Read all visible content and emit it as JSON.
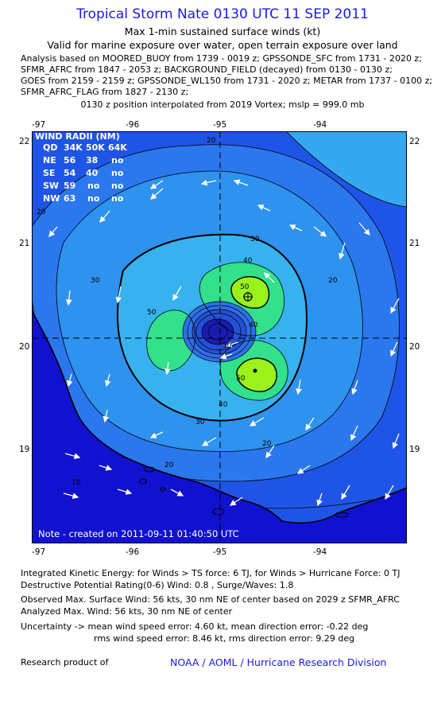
{
  "title": "Tropical Storm Nate 0130 UTC 11 SEP 2011",
  "subtitle1": "Max 1-min sustained surface winds (kt)",
  "subtitle2": "Valid for marine exposure over water, open terrain exposure over land",
  "analysis_lines": [
    "Analysis based on MOORED_BUOY from 1739 - 0019 z; GPSSONDE_SFC from 1731 - 2020 z;",
    "SFMR_AFRC from 1847 - 2053 z; BACKGROUND_FIELD (decayed) from 0130 - 0130 z;",
    "GOES from 2159 - 2159 z; GPSSONDE_WL150 from 1731 - 2020 z; METAR from 1737 - 0100 z;",
    "SFMR_AFRC_FLAG from 1827 - 2130 z;"
  ],
  "position_line": "0130 z position interpolated from 2019 Vortex; mslp = 999.0 mb",
  "map": {
    "lon_ticks": [
      "-97",
      "-96",
      "-95",
      "-94"
    ],
    "lat_ticks": [
      "22",
      "21",
      "20",
      "19"
    ],
    "contour_labels": [
      "10",
      "20",
      "30",
      "40",
      "50"
    ],
    "timestamp": "Note - created on 2011-09-11 01:40:50 UTC",
    "wind_radii": {
      "header": "WIND RADII (NM)",
      "columns": [
        "QD",
        "34K",
        "50K",
        "64K"
      ],
      "rows": [
        [
          "NE",
          "56",
          "38",
          "no"
        ],
        [
          "SE",
          "54",
          "40",
          "no"
        ],
        [
          "SW",
          "59",
          "no",
          "no"
        ],
        [
          "NW",
          "63",
          "no",
          "no"
        ]
      ]
    },
    "colors": {
      "ocean_blue": "#1f55e6",
      "cyan": "#37b2ef",
      "green": "#33e08c",
      "yellow_green": "#9af21a",
      "land": "#1111d0",
      "vortex": "#1a1ab4"
    }
  },
  "bottom_lines": [
    "Integrated Kinetic Energy:  for Winds > TS force: 6 TJ,  for Winds > Hurricane Force: 0 TJ",
    "Destructive Potential Rating(0-6)   Wind: 0.8 , Surge/Waves: 1.8",
    "Observed Max. Surface Wind: 56 kts, 30 nm NE of center based on 2029 z SFMR_AFRC",
    "Analyzed Max. Wind: 56 kts, 30 nm NE of center",
    "Uncertainty -> mean wind speed error: 4.60 kt,   mean direction error:  -0.22 deg",
    "rms wind speed error: 8.46 kt,   rms direction error: 9.29 deg"
  ],
  "footer_left": "Research product of",
  "footer_right": "NOAA / AOML / Hurricane Research Division"
}
